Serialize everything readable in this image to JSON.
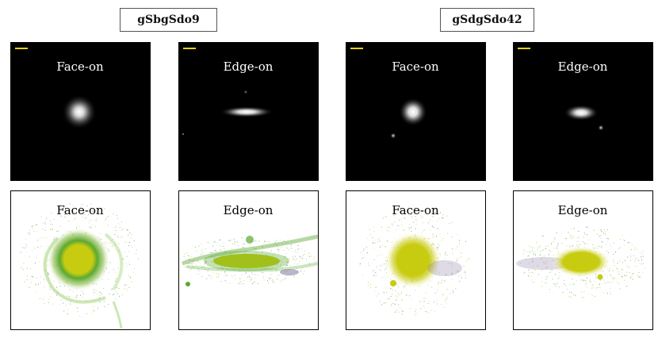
{
  "groups": [
    {
      "title": "gSbgSdo9"
    },
    {
      "title": "gSdgSdo42"
    }
  ],
  "panels": {
    "optical": [
      {
        "label": "Face-on"
      },
      {
        "label": "Edge-on"
      },
      {
        "label": "Face-on"
      },
      {
        "label": "Edge-on"
      }
    ],
    "stars": [
      {
        "label": "Face-on"
      },
      {
        "label": "Edge-on"
      },
      {
        "label": "Face-on"
      },
      {
        "label": "Edge-on"
      }
    ]
  },
  "colors": {
    "background_dark": "#000000",
    "scale_bar": "#e8d21a",
    "star_yellow": "#c8cc10",
    "star_green": "#5aa832",
    "star_purple": "#7a6a9a"
  }
}
